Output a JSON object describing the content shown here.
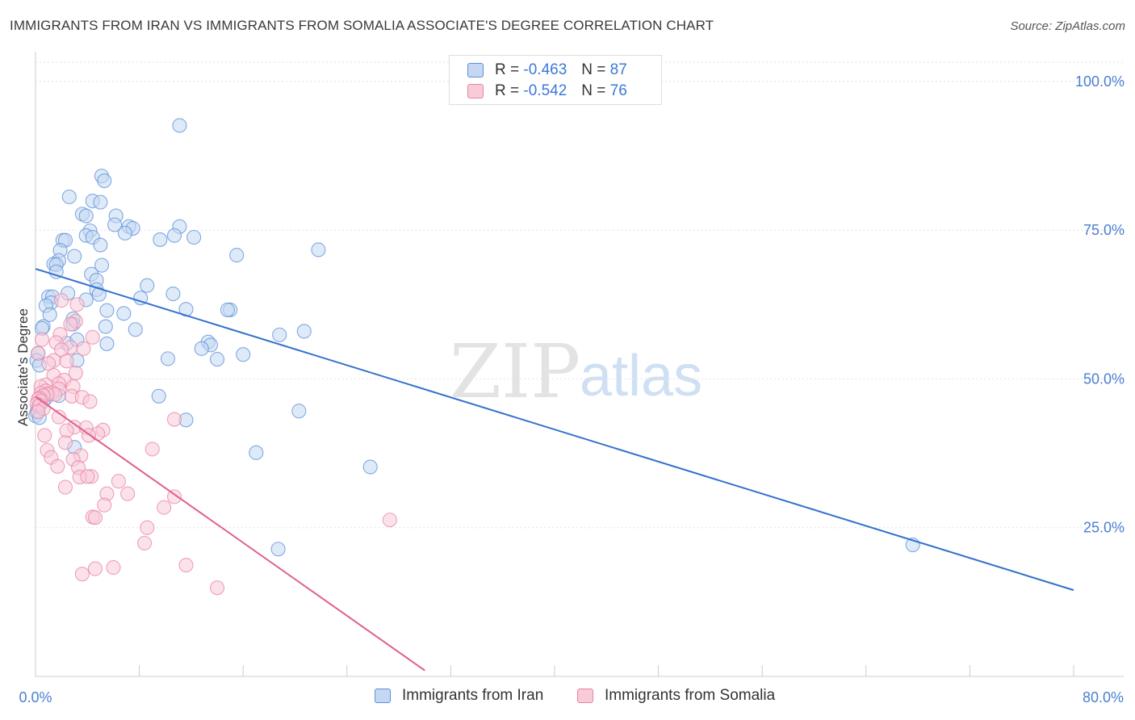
{
  "header": {
    "title": "IMMIGRANTS FROM IRAN VS IMMIGRANTS FROM SOMALIA ASSOCIATE'S DEGREE CORRELATION CHART",
    "source": "Source: ZipAtlas.com"
  },
  "watermark": {
    "zip": "ZIP",
    "atlas": "atlas"
  },
  "legend": {
    "r_label": "R =",
    "n_label": "N =",
    "rows": [
      {
        "r": "-0.463",
        "n": "87",
        "color": "#5b8fd8",
        "fill": "#c5d8f3"
      },
      {
        "r": "-0.542",
        "n": "76",
        "color": "#e983a4",
        "fill": "#f8cbd9"
      }
    ]
  },
  "chart_data": {
    "type": "scatter",
    "title": "IMMIGRANTS FROM IRAN VS IMMIGRANTS FROM SOMALIA ASSOCIATE'S DEGREE CORRELATION CHART",
    "xlabel": "",
    "ylabel": "Associate's Degree",
    "xlim": [
      0,
      80
    ],
    "ylim": [
      0,
      105
    ],
    "x_tick_labels": [
      "0.0%",
      "80.0%"
    ],
    "y_ticks": [
      25,
      50,
      75,
      100
    ],
    "y_tick_labels": [
      "25.0%",
      "50.0%",
      "75.0%",
      "100.0%"
    ],
    "grid": true,
    "series": [
      {
        "name": "Immigrants from Iran",
        "color": "#5b8fd8",
        "fill": "#c5d8f3",
        "trend": {
          "x": [
            0,
            80
          ],
          "y": [
            68.5,
            14.5
          ],
          "color": "#3370cc"
        },
        "points": [
          [
            11.1,
            92.6
          ],
          [
            5.1,
            84.1
          ],
          [
            5.3,
            83.3
          ],
          [
            2.6,
            80.6
          ],
          [
            4.4,
            79.9
          ],
          [
            5.0,
            79.7
          ],
          [
            3.6,
            77.7
          ],
          [
            6.2,
            77.4
          ],
          [
            3.9,
            77.4
          ],
          [
            6.1,
            75.9
          ],
          [
            7.2,
            75.6
          ],
          [
            11.1,
            75.6
          ],
          [
            7.5,
            75.3
          ],
          [
            4.2,
            74.9
          ],
          [
            6.9,
            74.5
          ],
          [
            3.9,
            74.1
          ],
          [
            10.7,
            74.1
          ],
          [
            12.2,
            73.8
          ],
          [
            2.1,
            73.3
          ],
          [
            2.3,
            73.3
          ],
          [
            4.4,
            73.8
          ],
          [
            9.6,
            73.4
          ],
          [
            5.0,
            72.5
          ],
          [
            21.8,
            71.7
          ],
          [
            1.9,
            71.6
          ],
          [
            15.5,
            70.8
          ],
          [
            3.0,
            70.6
          ],
          [
            1.8,
            69.9
          ],
          [
            1.4,
            69.3
          ],
          [
            1.6,
            69.2
          ],
          [
            5.1,
            69.1
          ],
          [
            1.6,
            68.0
          ],
          [
            4.3,
            67.6
          ],
          [
            4.7,
            66.6
          ],
          [
            8.6,
            65.7
          ],
          [
            4.7,
            65.0
          ],
          [
            2.5,
            64.4
          ],
          [
            10.6,
            64.3
          ],
          [
            4.9,
            64.2
          ],
          [
            1.0,
            63.8
          ],
          [
            1.3,
            63.8
          ],
          [
            8.1,
            63.6
          ],
          [
            3.9,
            63.3
          ],
          [
            1.2,
            62.8
          ],
          [
            0.8,
            62.3
          ],
          [
            11.6,
            61.7
          ],
          [
            15.0,
            61.6
          ],
          [
            14.8,
            61.6
          ],
          [
            5.5,
            61.5
          ],
          [
            6.8,
            61.0
          ],
          [
            1.1,
            60.8
          ],
          [
            2.9,
            60.1
          ],
          [
            2.9,
            59.2
          ],
          [
            5.4,
            58.8
          ],
          [
            0.6,
            58.8
          ],
          [
            0.5,
            58.5
          ],
          [
            7.7,
            58.3
          ],
          [
            20.7,
            58.0
          ],
          [
            18.8,
            57.4
          ],
          [
            5.5,
            55.9
          ],
          [
            13.3,
            56.2
          ],
          [
            13.5,
            55.7
          ],
          [
            2.4,
            56.0
          ],
          [
            3.2,
            56.6
          ],
          [
            12.8,
            55.1
          ],
          [
            16.0,
            54.1
          ],
          [
            0.2,
            54.3
          ],
          [
            0.1,
            53.1
          ],
          [
            10.2,
            53.4
          ],
          [
            14.0,
            53.3
          ],
          [
            3.2,
            53.1
          ],
          [
            0.3,
            52.3
          ],
          [
            9.5,
            47.1
          ],
          [
            1.8,
            47.2
          ],
          [
            0.8,
            46.8
          ],
          [
            0.6,
            46.3
          ],
          [
            0.2,
            45.3
          ],
          [
            0.1,
            44.4
          ],
          [
            0.0,
            43.8
          ],
          [
            0.3,
            43.5
          ],
          [
            11.6,
            43.1
          ],
          [
            20.3,
            44.6
          ],
          [
            3.0,
            38.5
          ],
          [
            17.0,
            37.6
          ],
          [
            25.8,
            35.2
          ],
          [
            18.7,
            21.4
          ],
          [
            67.6,
            22.1
          ]
        ]
      },
      {
        "name": "Immigrants from Somalia",
        "color": "#e983a4",
        "fill": "#f8cbd9",
        "trend": {
          "x": [
            0,
            30
          ],
          "y": [
            47,
            1
          ],
          "color": "#e0608c"
        },
        "points": [
          [
            2.0,
            63.2
          ],
          [
            3.2,
            62.5
          ],
          [
            3.1,
            59.7
          ],
          [
            2.7,
            59.2
          ],
          [
            1.9,
            57.5
          ],
          [
            4.4,
            57.0
          ],
          [
            0.5,
            56.6
          ],
          [
            1.6,
            56.1
          ],
          [
            2.7,
            55.3
          ],
          [
            2.0,
            54.9
          ],
          [
            3.7,
            55.1
          ],
          [
            0.2,
            54.3
          ],
          [
            1.4,
            53.1
          ],
          [
            2.4,
            53.0
          ],
          [
            1.0,
            52.6
          ],
          [
            3.1,
            51.0
          ],
          [
            1.4,
            50.6
          ],
          [
            2.2,
            49.8
          ],
          [
            1.8,
            49.2
          ],
          [
            0.8,
            49.0
          ],
          [
            0.4,
            48.7
          ],
          [
            2.9,
            48.7
          ],
          [
            1.8,
            48.3
          ],
          [
            0.8,
            48.0
          ],
          [
            1.3,
            47.7
          ],
          [
            0.4,
            47.6
          ],
          [
            1.5,
            47.4
          ],
          [
            0.9,
            47.4
          ],
          [
            0.6,
            47.2
          ],
          [
            2.8,
            47.1
          ],
          [
            0.3,
            46.8
          ],
          [
            3.6,
            46.9
          ],
          [
            0.2,
            46.6
          ],
          [
            0.4,
            46.3
          ],
          [
            4.2,
            46.2
          ],
          [
            0.1,
            45.8
          ],
          [
            0.3,
            45.5
          ],
          [
            0.6,
            45.0
          ],
          [
            0.2,
            44.5
          ],
          [
            1.8,
            43.6
          ],
          [
            10.7,
            43.2
          ],
          [
            3.0,
            41.9
          ],
          [
            3.9,
            41.8
          ],
          [
            5.2,
            41.4
          ],
          [
            2.4,
            41.3
          ],
          [
            4.8,
            40.8
          ],
          [
            0.7,
            40.5
          ],
          [
            4.1,
            40.5
          ],
          [
            2.3,
            39.3
          ],
          [
            0.9,
            38.0
          ],
          [
            9.0,
            38.2
          ],
          [
            3.5,
            37.1
          ],
          [
            1.2,
            36.8
          ],
          [
            2.9,
            36.5
          ],
          [
            1.7,
            35.3
          ],
          [
            3.3,
            35.1
          ],
          [
            4.3,
            33.6
          ],
          [
            3.4,
            33.5
          ],
          [
            4.0,
            33.6
          ],
          [
            6.4,
            32.8
          ],
          [
            2.3,
            31.8
          ],
          [
            7.1,
            30.7
          ],
          [
            5.5,
            30.7
          ],
          [
            10.7,
            30.2
          ],
          [
            5.3,
            28.8
          ],
          [
            9.9,
            28.4
          ],
          [
            4.4,
            26.8
          ],
          [
            4.6,
            26.7
          ],
          [
            27.3,
            26.3
          ],
          [
            8.6,
            25.0
          ],
          [
            8.4,
            22.4
          ],
          [
            11.6,
            18.7
          ],
          [
            6.0,
            18.3
          ],
          [
            4.6,
            18.1
          ],
          [
            3.6,
            17.2
          ],
          [
            14.0,
            14.9
          ]
        ]
      }
    ]
  }
}
